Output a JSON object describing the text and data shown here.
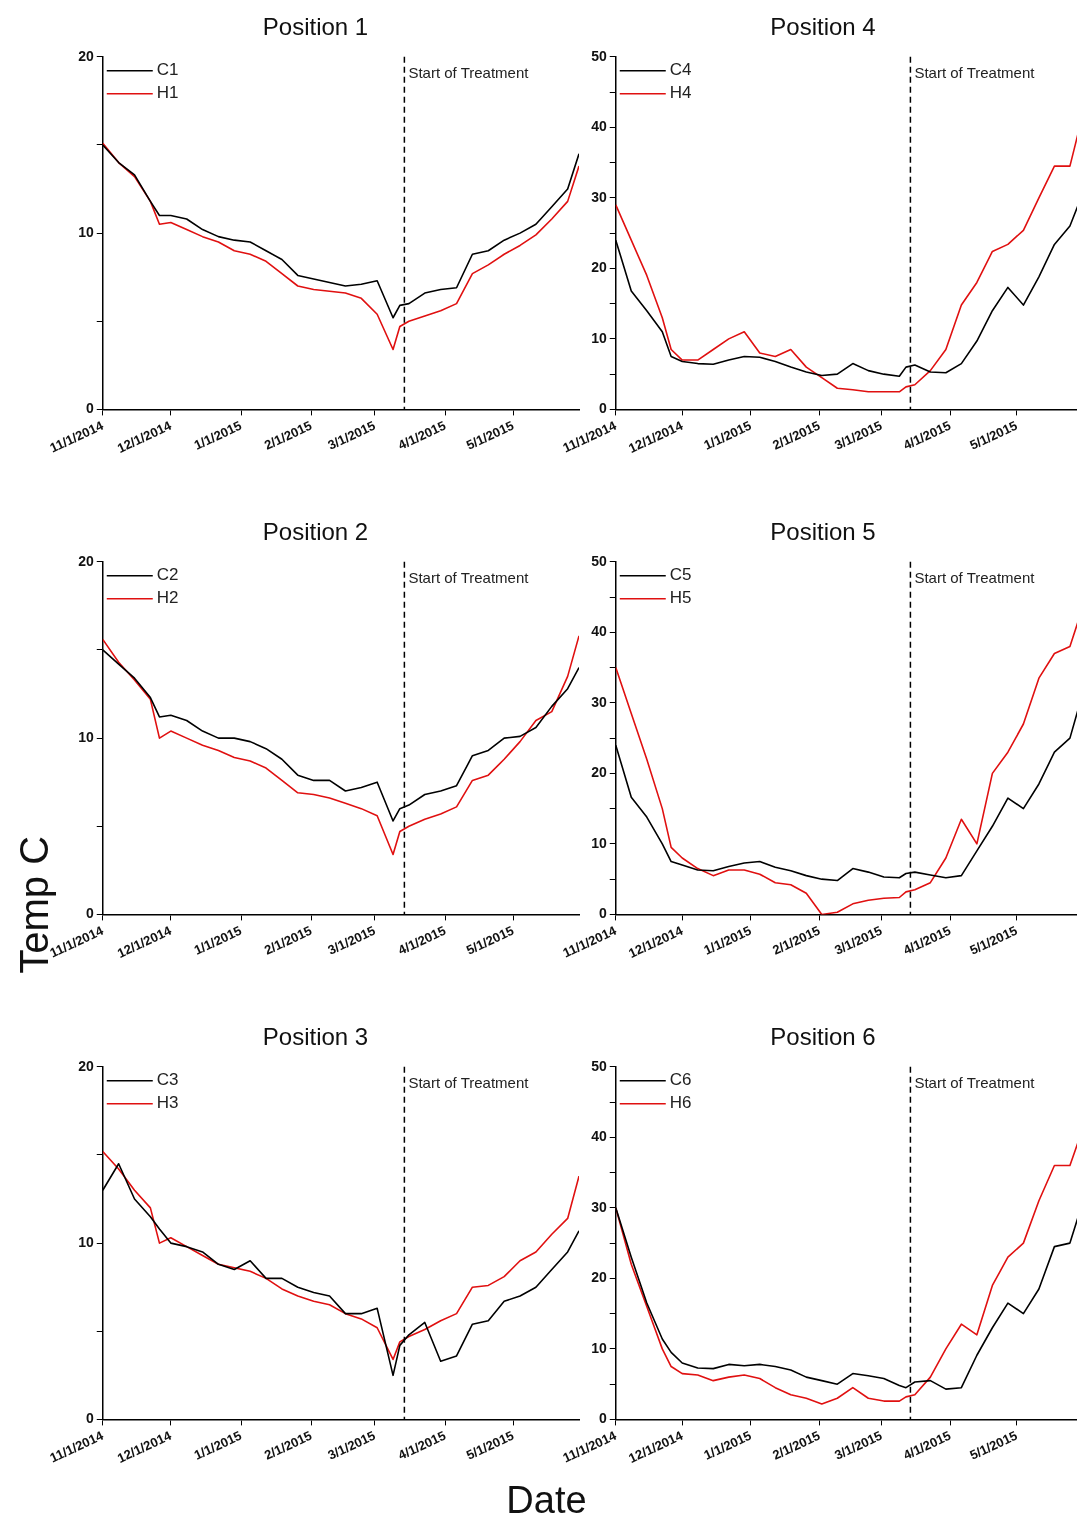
{
  "chart_data": [
    {
      "type": "line",
      "title": "Position 1",
      "x": [
        "2014-11-01",
        "2014-11-08",
        "2014-11-15",
        "2014-11-22",
        "2014-11-26",
        "2014-12-01",
        "2014-12-08",
        "2014-12-15",
        "2014-12-22",
        "2014-12-29",
        "2015-01-05",
        "2015-01-12",
        "2015-01-19",
        "2015-01-26",
        "2015-02-02",
        "2015-02-09",
        "2015-02-16",
        "2015-02-23",
        "2015-03-02",
        "2015-03-09",
        "2015-03-12",
        "2015-03-16",
        "2015-03-23",
        "2015-03-30",
        "2015-04-06",
        "2015-04-13",
        "2015-04-20",
        "2015-04-27",
        "2015-05-04",
        "2015-05-11",
        "2015-05-18",
        "2015-05-25",
        "2015-05-30"
      ],
      "series": [
        {
          "name": "C1",
          "color": "#000000",
          "values": [
            15.0,
            14.0,
            13.3,
            11.8,
            11.0,
            11.0,
            10.8,
            10.2,
            9.8,
            9.6,
            9.5,
            9.0,
            8.5,
            7.6,
            7.4,
            7.2,
            7.0,
            7.1,
            7.3,
            5.2,
            5.9,
            6.0,
            6.6,
            6.8,
            6.9,
            8.8,
            9.0,
            9.6,
            10.0,
            10.5,
            11.5,
            12.5,
            14.5
          ]
        },
        {
          "name": "H1",
          "color": "#e01010",
          "values": [
            15.1,
            14.0,
            13.2,
            11.8,
            10.5,
            10.6,
            10.2,
            9.8,
            9.5,
            9.0,
            8.8,
            8.4,
            7.7,
            7.0,
            6.8,
            6.7,
            6.6,
            6.3,
            5.4,
            3.4,
            4.7,
            5.0,
            5.3,
            5.6,
            6.0,
            7.7,
            8.2,
            8.8,
            9.3,
            9.9,
            10.8,
            11.8,
            13.8
          ]
        }
      ],
      "xlim": [
        "2014-11-01",
        "2015-05-30"
      ],
      "xticks": [
        {
          "value": "2014-11-01",
          "label": "11/1/2014"
        },
        {
          "value": "2014-12-01",
          "label": "12/1/2014"
        },
        {
          "value": "2015-01-01",
          "label": "1/1/2015"
        },
        {
          "value": "2015-02-01",
          "label": "2/1/2015"
        },
        {
          "value": "2015-03-01",
          "label": "3/1/2015"
        },
        {
          "value": "2015-04-01",
          "label": "4/1/2015"
        },
        {
          "value": "2015-05-01",
          "label": "5/1/2015"
        }
      ],
      "ylim": [
        0,
        20
      ],
      "yticks": [
        0,
        {
          "value": 5,
          "label": null
        },
        10,
        {
          "value": 15,
          "label": null
        },
        20
      ],
      "ref_lines": [
        {
          "axis": "x",
          "value": "2015-03-14",
          "label": "Start of Treatment",
          "color": "#000000",
          "line_style": "dashed"
        }
      ],
      "legend": "top left",
      "marker": "none",
      "line_style": "solid",
      "grid": false
    },
    {
      "type": "line",
      "title": "Position 4",
      "x": [
        "2014-11-01",
        "2014-11-08",
        "2014-11-15",
        "2014-11-22",
        "2014-11-26",
        "2014-12-01",
        "2014-12-08",
        "2014-12-15",
        "2014-12-22",
        "2014-12-29",
        "2015-01-05",
        "2015-01-12",
        "2015-01-19",
        "2015-01-26",
        "2015-02-02",
        "2015-02-09",
        "2015-02-16",
        "2015-02-23",
        "2015-03-02",
        "2015-03-09",
        "2015-03-12",
        "2015-03-16",
        "2015-03-23",
        "2015-03-30",
        "2015-04-06",
        "2015-04-13",
        "2015-04-20",
        "2015-04-27",
        "2015-05-04",
        "2015-05-11",
        "2015-05-18",
        "2015-05-25",
        "2015-05-30"
      ],
      "series": [
        {
          "name": "C4",
          "color": "#000000",
          "values": [
            24,
            16.8,
            14,
            11,
            7.5,
            6.8,
            6.5,
            6.4,
            7.0,
            7.5,
            7.4,
            6.8,
            6.0,
            5.3,
            4.8,
            5.0,
            6.5,
            5.5,
            5.0,
            4.7,
            6.0,
            6.3,
            5.3,
            5.2,
            6.5,
            9.7,
            14,
            17.3,
            14.8,
            18.8,
            23.4,
            26,
            30
          ]
        },
        {
          "name": "H4",
          "color": "#e01010",
          "values": [
            29,
            24,
            19,
            13,
            8.5,
            7,
            7,
            8.5,
            10,
            11,
            8,
            7.5,
            8.5,
            6,
            4.5,
            3,
            2.8,
            2.5,
            2.5,
            2.5,
            3.2,
            3.5,
            5.5,
            8.5,
            14.8,
            18,
            22.4,
            23.4,
            25.4,
            30,
            34.5,
            34.5,
            40.8
          ]
        }
      ],
      "xlim": [
        "2014-11-01",
        "2015-05-30"
      ],
      "xticks": [
        {
          "value": "2014-11-01",
          "label": "11/1/2014"
        },
        {
          "value": "2014-12-01",
          "label": "12/1/2014"
        },
        {
          "value": "2015-01-01",
          "label": "1/1/2015"
        },
        {
          "value": "2015-02-01",
          "label": "2/1/2015"
        },
        {
          "value": "2015-03-01",
          "label": "3/1/2015"
        },
        {
          "value": "2015-04-01",
          "label": "4/1/2015"
        },
        {
          "value": "2015-05-01",
          "label": "5/1/2015"
        }
      ],
      "ylim": [
        0,
        50
      ],
      "yticks": [
        0,
        {
          "value": 5,
          "label": null
        },
        10,
        {
          "value": 15,
          "label": null
        },
        20,
        {
          "value": 25,
          "label": null
        },
        30,
        {
          "value": 35,
          "label": null
        },
        40,
        {
          "value": 45,
          "label": null
        },
        50
      ],
      "ref_lines": [
        {
          "axis": "x",
          "value": "2015-03-14",
          "label": "Start of Treatment",
          "color": "#000000",
          "line_style": "dashed"
        }
      ],
      "legend": "top left",
      "marker": "none",
      "line_style": "solid",
      "grid": false
    },
    {
      "type": "line",
      "title": "Position 2",
      "ylabel": "Temp C",
      "x": [
        "2014-11-01",
        "2014-11-08",
        "2014-11-15",
        "2014-11-22",
        "2014-11-26",
        "2014-12-01",
        "2014-12-08",
        "2014-12-15",
        "2014-12-22",
        "2014-12-29",
        "2015-01-05",
        "2015-01-12",
        "2015-01-19",
        "2015-01-26",
        "2015-02-02",
        "2015-02-09",
        "2015-02-16",
        "2015-02-23",
        "2015-03-02",
        "2015-03-09",
        "2015-03-12",
        "2015-03-16",
        "2015-03-23",
        "2015-03-30",
        "2015-04-06",
        "2015-04-13",
        "2015-04-20",
        "2015-04-27",
        "2015-05-04",
        "2015-05-11",
        "2015-05-18",
        "2015-05-25",
        "2015-05-30"
      ],
      "series": [
        {
          "name": "C2",
          "color": "#000000",
          "values": [
            15.0,
            14.2,
            13.4,
            12.3,
            11.2,
            11.3,
            11.0,
            10.4,
            10.0,
            10.0,
            9.8,
            9.4,
            8.8,
            7.9,
            7.6,
            7.6,
            7.0,
            7.2,
            7.5,
            5.3,
            6.0,
            6.2,
            6.8,
            7.0,
            7.3,
            9.0,
            9.3,
            10.0,
            10.1,
            10.6,
            11.8,
            12.8,
            14.0
          ]
        },
        {
          "name": "H2",
          "color": "#e01010",
          "values": [
            15.6,
            14.3,
            13.3,
            12.2,
            10.0,
            10.4,
            10.0,
            9.6,
            9.3,
            8.9,
            8.7,
            8.3,
            7.6,
            6.9,
            6.8,
            6.6,
            6.3,
            6.0,
            5.6,
            3.4,
            4.7,
            5.0,
            5.4,
            5.7,
            6.1,
            7.6,
            7.9,
            8.8,
            9.8,
            11.0,
            11.5,
            13.5,
            15.8
          ]
        }
      ],
      "xlim": [
        "2014-11-01",
        "2015-05-30"
      ],
      "xticks": [
        {
          "value": "2014-11-01",
          "label": "11/1/2014"
        },
        {
          "value": "2014-12-01",
          "label": "12/1/2014"
        },
        {
          "value": "2015-01-01",
          "label": "1/1/2015"
        },
        {
          "value": "2015-02-01",
          "label": "2/1/2015"
        },
        {
          "value": "2015-03-01",
          "label": "3/1/2015"
        },
        {
          "value": "2015-04-01",
          "label": "4/1/2015"
        },
        {
          "value": "2015-05-01",
          "label": "5/1/2015"
        }
      ],
      "ylim": [
        0,
        20
      ],
      "yticks": [
        0,
        {
          "value": 5,
          "label": null
        },
        10,
        {
          "value": 15,
          "label": null
        },
        20
      ],
      "ref_lines": [
        {
          "axis": "x",
          "value": "2015-03-14",
          "label": "Start of Treatment",
          "color": "#000000",
          "line_style": "dashed"
        }
      ],
      "legend": "top left",
      "marker": "none",
      "line_style": "solid",
      "grid": false
    },
    {
      "type": "line",
      "title": "Position 5",
      "x": [
        "2014-11-01",
        "2014-11-08",
        "2014-11-15",
        "2014-11-22",
        "2014-11-26",
        "2014-12-01",
        "2014-12-08",
        "2014-12-15",
        "2014-12-22",
        "2014-12-29",
        "2015-01-05",
        "2015-01-12",
        "2015-01-19",
        "2015-01-26",
        "2015-02-02",
        "2015-02-09",
        "2015-02-16",
        "2015-02-23",
        "2015-03-02",
        "2015-03-09",
        "2015-03-12",
        "2015-03-16",
        "2015-03-23",
        "2015-03-30",
        "2015-04-06",
        "2015-04-13",
        "2015-04-20",
        "2015-04-27",
        "2015-05-04",
        "2015-05-11",
        "2015-05-18",
        "2015-05-25",
        "2015-05-30"
      ],
      "series": [
        {
          "name": "C5",
          "color": "#000000",
          "values": [
            24,
            16.6,
            13.8,
            10,
            7.5,
            7,
            6.3,
            6.2,
            6.8,
            7.3,
            7.5,
            6.7,
            6.2,
            5.5,
            5.0,
            4.8,
            6.5,
            6.0,
            5.3,
            5.2,
            5.8,
            6.0,
            5.6,
            5.2,
            5.5,
            9,
            12.5,
            16.5,
            15,
            18.5,
            23,
            25,
            30.5
          ]
        },
        {
          "name": "H5",
          "color": "#e01010",
          "values": [
            35,
            28.5,
            22,
            15,
            9.5,
            8,
            6.5,
            5.5,
            6.3,
            6.3,
            5.7,
            4.5,
            4.2,
            3.0,
            0,
            0.3,
            1.5,
            2.0,
            2.3,
            2.4,
            3.2,
            3.5,
            4.5,
            8.0,
            13.5,
            10,
            20,
            23,
            27,
            33.5,
            37,
            38,
            42.8
          ]
        }
      ],
      "xlim": [
        "2014-11-01",
        "2015-05-30"
      ],
      "xticks": [
        {
          "value": "2014-11-01",
          "label": "11/1/2014"
        },
        {
          "value": "2014-12-01",
          "label": "12/1/2014"
        },
        {
          "value": "2015-01-01",
          "label": "1/1/2015"
        },
        {
          "value": "2015-02-01",
          "label": "2/1/2015"
        },
        {
          "value": "2015-03-01",
          "label": "3/1/2015"
        },
        {
          "value": "2015-04-01",
          "label": "4/1/2015"
        },
        {
          "value": "2015-05-01",
          "label": "5/1/2015"
        }
      ],
      "ylim": [
        0,
        50
      ],
      "yticks": [
        0,
        {
          "value": 5,
          "label": null
        },
        10,
        {
          "value": 15,
          "label": null
        },
        20,
        {
          "value": 25,
          "label": null
        },
        30,
        {
          "value": 35,
          "label": null
        },
        40,
        {
          "value": 45,
          "label": null
        },
        50
      ],
      "ref_lines": [
        {
          "axis": "x",
          "value": "2015-03-14",
          "label": "Start of Treatment",
          "color": "#000000",
          "line_style": "dashed"
        }
      ],
      "legend": "top left",
      "marker": "none",
      "line_style": "solid",
      "grid": false
    },
    {
      "type": "line",
      "title": "Position 3",
      "xlabel": "Date",
      "x": [
        "2014-11-01",
        "2014-11-08",
        "2014-11-15",
        "2014-11-22",
        "2014-11-26",
        "2014-12-01",
        "2014-12-08",
        "2014-12-15",
        "2014-12-22",
        "2014-12-29",
        "2015-01-05",
        "2015-01-12",
        "2015-01-19",
        "2015-01-26",
        "2015-02-02",
        "2015-02-09",
        "2015-02-16",
        "2015-02-23",
        "2015-03-02",
        "2015-03-09",
        "2015-03-12",
        "2015-03-16",
        "2015-03-23",
        "2015-03-30",
        "2015-04-06",
        "2015-04-13",
        "2015-04-20",
        "2015-04-27",
        "2015-05-04",
        "2015-05-11",
        "2015-05-18",
        "2015-05-25",
        "2015-05-30"
      ],
      "series": [
        {
          "name": "C3",
          "color": "#000000",
          "values": [
            13.0,
            14.5,
            12.5,
            11.5,
            10.8,
            10.0,
            9.8,
            9.5,
            8.8,
            8.5,
            9.0,
            8.0,
            8.0,
            7.5,
            7.2,
            7.0,
            6.0,
            6.0,
            6.3,
            2.5,
            4.2,
            4.8,
            5.5,
            3.3,
            3.6,
            5.4,
            5.6,
            6.7,
            7.0,
            7.5,
            8.5,
            9.5,
            10.7
          ]
        },
        {
          "name": "H3",
          "color": "#e01010",
          "values": [
            15.2,
            14.2,
            13.0,
            12.0,
            10.0,
            10.3,
            9.8,
            9.3,
            8.8,
            8.6,
            8.4,
            8.0,
            7.4,
            7.0,
            6.7,
            6.5,
            6.0,
            5.7,
            5.2,
            3.4,
            4.4,
            4.7,
            5.1,
            5.6,
            6.0,
            7.5,
            7.6,
            8.1,
            9.0,
            9.5,
            10.5,
            11.4,
            13.8
          ]
        }
      ],
      "xlim": [
        "2014-11-01",
        "2015-05-30"
      ],
      "xticks": [
        {
          "value": "2014-11-01",
          "label": "11/1/2014"
        },
        {
          "value": "2014-12-01",
          "label": "12/1/2014"
        },
        {
          "value": "2015-01-01",
          "label": "1/1/2015"
        },
        {
          "value": "2015-02-01",
          "label": "2/1/2015"
        },
        {
          "value": "2015-03-01",
          "label": "3/1/2015"
        },
        {
          "value": "2015-04-01",
          "label": "4/1/2015"
        },
        {
          "value": "2015-05-01",
          "label": "5/1/2015"
        }
      ],
      "ylim": [
        0,
        20
      ],
      "yticks": [
        0,
        {
          "value": 5,
          "label": null
        },
        10,
        {
          "value": 15,
          "label": null
        },
        20
      ],
      "ref_lines": [
        {
          "axis": "x",
          "value": "2015-03-14",
          "label": "Start of Treatment",
          "color": "#000000",
          "line_style": "dashed"
        }
      ],
      "legend": "top left",
      "marker": "none",
      "line_style": "solid",
      "grid": false
    },
    {
      "type": "line",
      "title": "Position 6",
      "x": [
        "2014-11-01",
        "2014-11-08",
        "2014-11-15",
        "2014-11-22",
        "2014-11-26",
        "2014-12-01",
        "2014-12-08",
        "2014-12-15",
        "2014-12-22",
        "2014-12-29",
        "2015-01-05",
        "2015-01-12",
        "2015-01-19",
        "2015-01-26",
        "2015-02-02",
        "2015-02-09",
        "2015-02-16",
        "2015-02-23",
        "2015-03-02",
        "2015-03-09",
        "2015-03-12",
        "2015-03-16",
        "2015-03-23",
        "2015-03-30",
        "2015-04-06",
        "2015-04-13",
        "2015-04-20",
        "2015-04-27",
        "2015-05-04",
        "2015-05-11",
        "2015-05-18",
        "2015-05-25",
        "2015-05-30"
      ],
      "series": [
        {
          "name": "C6",
          "color": "#000000",
          "values": [
            30,
            23,
            16.5,
            11.4,
            9.5,
            8,
            7.3,
            7.2,
            7.8,
            7.6,
            7.8,
            7.5,
            7.0,
            6.0,
            5.5,
            5.0,
            6.5,
            6.2,
            5.8,
            4.8,
            4.5,
            5.3,
            5.5,
            4.3,
            4.5,
            9.1,
            13,
            16.5,
            15,
            18.5,
            24.5,
            25,
            30
          ]
        },
        {
          "name": "H6",
          "color": "#e01010",
          "values": [
            30,
            22,
            16,
            10,
            7.5,
            6.5,
            6.3,
            5.5,
            6.0,
            6.3,
            5.8,
            4.5,
            3.5,
            3.0,
            2.2,
            3.0,
            4.5,
            3.0,
            2.6,
            2.6,
            3.2,
            3.5,
            6,
            10,
            13.5,
            12,
            19,
            23,
            25,
            31,
            36,
            36,
            40.5
          ]
        }
      ],
      "xlim": [
        "2014-11-01",
        "2015-05-30"
      ],
      "xticks": [
        {
          "value": "2014-11-01",
          "label": "11/1/2014"
        },
        {
          "value": "2014-12-01",
          "label": "12/1/2014"
        },
        {
          "value": "2015-01-01",
          "label": "1/1/2015"
        },
        {
          "value": "2015-02-01",
          "label": "2/1/2015"
        },
        {
          "value": "2015-03-01",
          "label": "3/1/2015"
        },
        {
          "value": "2015-04-01",
          "label": "4/1/2015"
        },
        {
          "value": "2015-05-01",
          "label": "5/1/2015"
        }
      ],
      "ylim": [
        0,
        50
      ],
      "yticks": [
        0,
        {
          "value": 5,
          "label": null
        },
        10,
        {
          "value": 15,
          "label": null
        },
        20,
        {
          "value": 25,
          "label": null
        },
        30,
        {
          "value": 35,
          "label": null
        },
        40,
        {
          "value": 45,
          "label": null
        },
        50
      ],
      "ref_lines": [
        {
          "axis": "x",
          "value": "2015-03-14",
          "label": "Start of Treatment",
          "color": "#000000",
          "line_style": "dashed"
        }
      ],
      "legend": "top left",
      "marker": "none",
      "line_style": "solid",
      "grid": false
    }
  ]
}
